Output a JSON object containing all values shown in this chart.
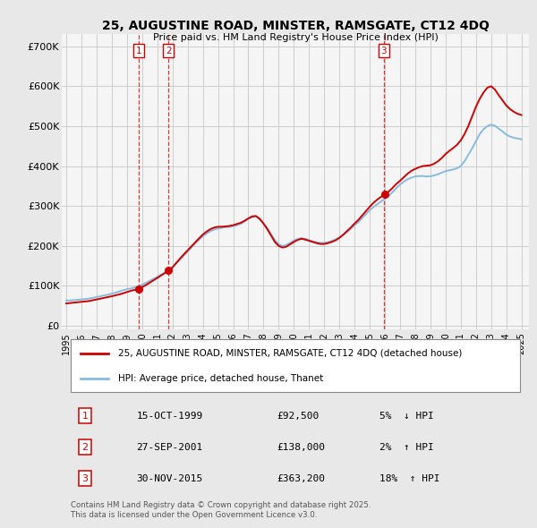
{
  "title": "25, AUGUSTINE ROAD, MINSTER, RAMSGATE, CT12 4DQ",
  "subtitle": "Price paid vs. HM Land Registry's House Price Index (HPI)",
  "yticks": [
    0,
    100000,
    200000,
    300000,
    400000,
    500000,
    600000,
    700000
  ],
  "ytick_labels": [
    "£0",
    "£100K",
    "£200K",
    "£300K",
    "£400K",
    "£500K",
    "£600K",
    "£700K"
  ],
  "xlim": [
    1994.7,
    2025.5
  ],
  "ylim": [
    -10000,
    730000
  ],
  "bg_color": "#e8e8e8",
  "plot_bg_color": "#f5f5f5",
  "grid_color": "#cccccc",
  "line_color_red": "#cc0000",
  "line_color_blue": "#88bbdd",
  "transactions": [
    {
      "num": 1,
      "year": 1999.79,
      "price": 92500,
      "date": "15-OCT-1999",
      "pct": "5%",
      "dir": "↓"
    },
    {
      "num": 2,
      "year": 2001.74,
      "price": 138000,
      "date": "27-SEP-2001",
      "pct": "2%",
      "dir": "↑"
    },
    {
      "num": 3,
      "year": 2015.92,
      "price": 363200,
      "date": "30-NOV-2015",
      "pct": "18%",
      "dir": "↑"
    }
  ],
  "legend_line1": "25, AUGUSTINE ROAD, MINSTER, RAMSGATE, CT12 4DQ (detached house)",
  "legend_line2": "HPI: Average price, detached house, Thanet",
  "footer": "Contains HM Land Registry data © Crown copyright and database right 2025.\nThis data is licensed under the Open Government Licence v3.0.",
  "hpi_values": [
    63000,
    63500,
    64200,
    65000,
    66000,
    67000,
    68200,
    70000,
    72000,
    74000,
    76000,
    78000,
    80500,
    83000,
    86000,
    89000,
    91500,
    93500,
    96000,
    99000,
    103000,
    107500,
    112500,
    117500,
    122500,
    128000,
    133500,
    138500,
    146000,
    156000,
    166000,
    176000,
    186000,
    196000,
    206000,
    215500,
    224000,
    231000,
    237000,
    241000,
    243500,
    245500,
    247000,
    247500,
    249500,
    251500,
    255500,
    261500,
    267500,
    272000,
    273500,
    267000,
    257000,
    244500,
    229500,
    214500,
    204500,
    200000,
    202500,
    207500,
    213500,
    217500,
    219500,
    217500,
    214500,
    211500,
    209500,
    207500,
    207500,
    209500,
    212500,
    216500,
    221500,
    227500,
    234500,
    242500,
    251500,
    259500,
    269500,
    279500,
    289500,
    297500,
    304500,
    311500,
    317500,
    324500,
    334500,
    344500,
    354000,
    361000,
    367000,
    371000,
    374000,
    375000,
    375000,
    374000,
    374500,
    376500,
    379500,
    383500,
    387500,
    389500,
    391500,
    394500,
    400000,
    412000,
    428000,
    444000,
    462000,
    480000,
    492000,
    500000,
    504000,
    501000,
    494000,
    487000,
    479000,
    474000,
    471000,
    469000,
    467000
  ],
  "price_values": [
    56000,
    57000,
    58000,
    59000,
    60000,
    61000,
    62000,
    64000,
    66000,
    68000,
    70000,
    72000,
    74000,
    76500,
    78500,
    81500,
    84500,
    87500,
    90000,
    92500,
    97000,
    102000,
    108000,
    114000,
    120000,
    126000,
    132000,
    138000,
    146500,
    157500,
    168500,
    179000,
    189000,
    199000,
    209000,
    219000,
    228500,
    236000,
    242000,
    246000,
    248000,
    248000,
    249000,
    250000,
    252000,
    255000,
    258000,
    263000,
    269000,
    274000,
    275000,
    268000,
    256000,
    242000,
    226000,
    210000,
    200000,
    196000,
    198000,
    204000,
    210000,
    215000,
    218000,
    216000,
    213000,
    210000,
    207000,
    205000,
    205000,
    207000,
    210000,
    214000,
    220000,
    228000,
    237000,
    246000,
    256000,
    265000,
    276000,
    287000,
    298000,
    308000,
    316000,
    323000,
    329000,
    336000,
    345000,
    355000,
    363200,
    372000,
    381000,
    388000,
    393000,
    397000,
    400000,
    401000,
    402000,
    406000,
    412000,
    420000,
    430000,
    438000,
    445000,
    453000,
    464000,
    480000,
    500000,
    524000,
    548000,
    568000,
    584000,
    596000,
    600000,
    592000,
    578000,
    565000,
    552000,
    543000,
    536000,
    531000,
    528000
  ],
  "data_years": [
    1995,
    1995.25,
    1995.5,
    1995.75,
    1996,
    1996.25,
    1996.5,
    1996.75,
    1997,
    1997.25,
    1997.5,
    1997.75,
    1998,
    1998.25,
    1998.5,
    1998.75,
    1999,
    1999.25,
    1999.5,
    1999.75,
    2000,
    2000.25,
    2000.5,
    2000.75,
    2001,
    2001.25,
    2001.5,
    2001.75,
    2002,
    2002.25,
    2002.5,
    2002.75,
    2003,
    2003.25,
    2003.5,
    2003.75,
    2004,
    2004.25,
    2004.5,
    2004.75,
    2005,
    2005.25,
    2005.5,
    2005.75,
    2006,
    2006.25,
    2006.5,
    2006.75,
    2007,
    2007.25,
    2007.5,
    2007.75,
    2008,
    2008.25,
    2008.5,
    2008.75,
    2009,
    2009.25,
    2009.5,
    2009.75,
    2010,
    2010.25,
    2010.5,
    2010.75,
    2011,
    2011.25,
    2011.5,
    2011.75,
    2012,
    2012.25,
    2012.5,
    2012.75,
    2013,
    2013.25,
    2013.5,
    2013.75,
    2014,
    2014.25,
    2014.5,
    2014.75,
    2015,
    2015.25,
    2015.5,
    2015.75,
    2016,
    2016.25,
    2016.5,
    2016.75,
    2017,
    2017.25,
    2017.5,
    2017.75,
    2018,
    2018.25,
    2018.5,
    2018.75,
    2019,
    2019.25,
    2019.5,
    2019.75,
    2020,
    2020.25,
    2020.5,
    2020.75,
    2021,
    2021.25,
    2021.5,
    2021.75,
    2022,
    2022.25,
    2022.5,
    2022.75,
    2023,
    2023.25,
    2023.5,
    2023.75,
    2024,
    2024.25,
    2024.5,
    2024.75,
    2025
  ]
}
